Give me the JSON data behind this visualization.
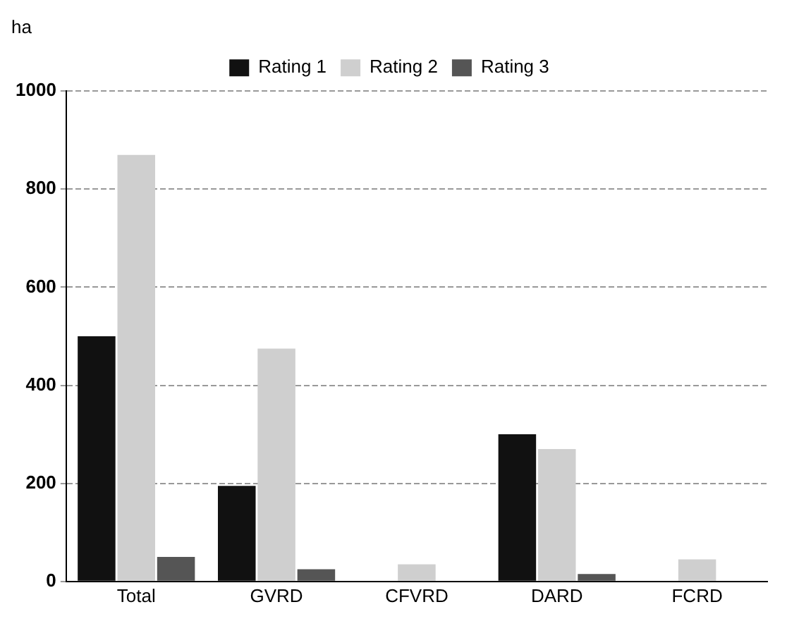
{
  "chart_data": {
    "type": "bar",
    "ylabel": "ha",
    "categories": [
      "Total",
      "GVRD",
      "CFVRD",
      "DARD",
      "FCRD"
    ],
    "series": [
      {
        "name": "Rating 1",
        "color": "#111111",
        "values": [
          500,
          195,
          0,
          300,
          0
        ]
      },
      {
        "name": "Rating 2",
        "color": "#cfcfcf",
        "values": [
          870,
          475,
          35,
          270,
          45
        ]
      },
      {
        "name": "Rating 3",
        "color": "#555555",
        "values": [
          50,
          25,
          0,
          15,
          0
        ]
      }
    ],
    "ylim": [
      0,
      1000
    ],
    "yticks": [
      0,
      200,
      400,
      600,
      800,
      1000
    ],
    "grid": "y",
    "legend": "top"
  }
}
